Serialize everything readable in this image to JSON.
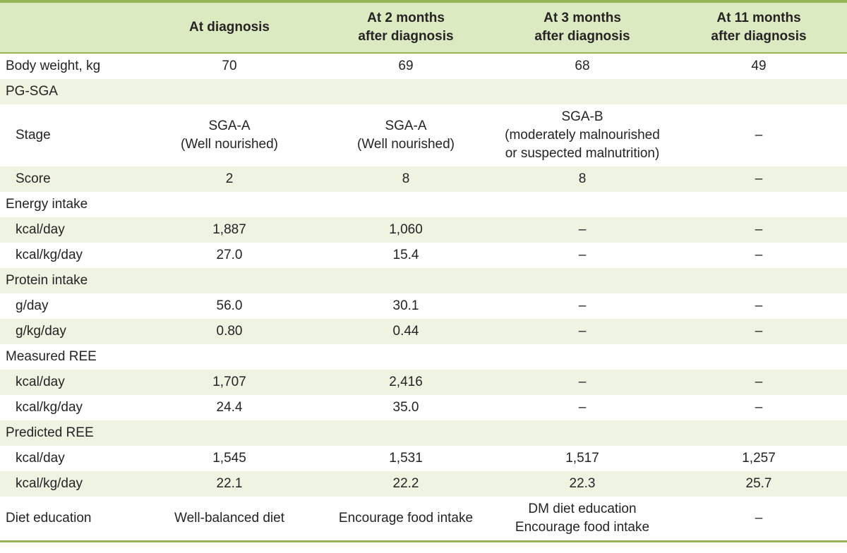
{
  "colors": {
    "border_green": "#96b455",
    "header_bg": "#dceac1",
    "row_stripe": "#eff3e2",
    "text": "#262324"
  },
  "table": {
    "header": [
      "",
      "At diagnosis",
      "At 2 months\nafter diagnosis",
      "At 3 months\nafter diagnosis",
      "At 11 months\nafter diagnosis"
    ],
    "rows": [
      {
        "label": "Body weight, kg",
        "indent": false,
        "section": false,
        "shaded": false,
        "values": [
          "70",
          "69",
          "68",
          "49"
        ]
      },
      {
        "label": "PG-SGA",
        "indent": false,
        "section": true,
        "shaded": true,
        "values": [
          "",
          "",
          "",
          ""
        ]
      },
      {
        "label": "Stage",
        "indent": true,
        "section": false,
        "shaded": false,
        "values": [
          "SGA-A\n(Well nourished)",
          "SGA-A\n(Well nourished)",
          "SGA-B\n(moderately malnourished\nor suspected malnutrition)",
          "–"
        ]
      },
      {
        "label": "Score",
        "indent": true,
        "section": false,
        "shaded": true,
        "values": [
          "2",
          "8",
          "8",
          "–"
        ]
      },
      {
        "label": "Energy intake",
        "indent": false,
        "section": true,
        "shaded": false,
        "values": [
          "",
          "",
          "",
          ""
        ]
      },
      {
        "label": "kcal/day",
        "indent": true,
        "section": false,
        "shaded": true,
        "values": [
          "1,887",
          "1,060",
          "–",
          "–"
        ]
      },
      {
        "label": "kcal/kg/day",
        "indent": true,
        "section": false,
        "shaded": false,
        "values": [
          "27.0",
          "15.4",
          "–",
          "–"
        ]
      },
      {
        "label": "Protein intake",
        "indent": false,
        "section": true,
        "shaded": true,
        "values": [
          "",
          "",
          "",
          ""
        ]
      },
      {
        "label": "g/day",
        "indent": true,
        "section": false,
        "shaded": false,
        "values": [
          "56.0",
          "30.1",
          "–",
          "–"
        ]
      },
      {
        "label": "g/kg/day",
        "indent": true,
        "section": false,
        "shaded": true,
        "values": [
          "0.80",
          "0.44",
          "–",
          "–"
        ]
      },
      {
        "label": "Measured REE",
        "indent": false,
        "section": true,
        "shaded": false,
        "values": [
          "",
          "",
          "",
          ""
        ]
      },
      {
        "label": "kcal/day",
        "indent": true,
        "section": false,
        "shaded": true,
        "values": [
          "1,707",
          "2,416",
          "–",
          "–"
        ]
      },
      {
        "label": "kcal/kg/day",
        "indent": true,
        "section": false,
        "shaded": false,
        "values": [
          "24.4",
          "35.0",
          "–",
          "–"
        ]
      },
      {
        "label": "Predicted REE",
        "indent": false,
        "section": true,
        "shaded": true,
        "values": [
          "",
          "",
          "",
          ""
        ]
      },
      {
        "label": "kcal/day",
        "indent": true,
        "section": false,
        "shaded": false,
        "values": [
          "1,545",
          "1,531",
          "1,517",
          "1,257"
        ]
      },
      {
        "label": "kcal/kg/day",
        "indent": true,
        "section": false,
        "shaded": true,
        "values": [
          "22.1",
          "22.2",
          "22.3",
          "25.7"
        ]
      },
      {
        "label": "Diet education",
        "indent": false,
        "section": false,
        "shaded": false,
        "values": [
          "Well-balanced diet",
          "Encourage food intake",
          "DM diet education\nEncourage food intake",
          "–"
        ]
      }
    ]
  }
}
